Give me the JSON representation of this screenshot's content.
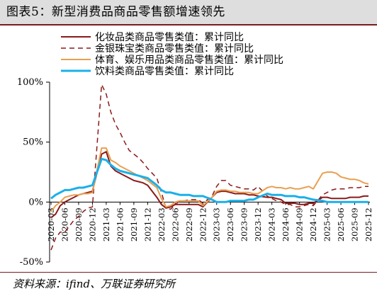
{
  "header": {
    "title": "图表5：新型消费品商品零售额增速领先"
  },
  "footer": {
    "source": "资料来源：ifind、万联证券研究所"
  },
  "chart_data": {
    "type": "line",
    "title": "",
    "xlabel": "",
    "ylabel": "",
    "ylim": [
      -50,
      100
    ],
    "yticks": [
      -50,
      0,
      50,
      100
    ],
    "ytick_labels": [
      "-50%",
      "0%",
      "50%",
      "100%"
    ],
    "grid": false,
    "legend_position": "top",
    "xtick_labels": [
      "2020-03",
      "2020-06",
      "2020-09",
      "2020-12",
      "2021-03",
      "2021-06",
      "2021-09",
      "2021-12",
      "2022-03",
      "2022-06",
      "2022-09",
      "2022-12",
      "2023-03",
      "2023-06",
      "2023-09",
      "2023-12",
      "2024-03",
      "2024-06",
      "2024-09",
      "2024-12",
      "2025-03",
      "2025-06",
      "2025-09",
      "2025-12"
    ],
    "x": [
      "2020-03",
      "2020-04",
      "2020-05",
      "2020-06",
      "2020-07",
      "2020-08",
      "2020-09",
      "2020-10",
      "2020-11",
      "2020-12",
      "2021-02",
      "2021-03",
      "2021-04",
      "2021-05",
      "2021-06",
      "2021-07",
      "2021-08",
      "2021-09",
      "2021-10",
      "2021-11",
      "2021-12",
      "2022-02",
      "2022-03",
      "2022-04",
      "2022-05",
      "2022-06",
      "2022-07",
      "2022-08",
      "2022-09",
      "2022-10",
      "2022-11",
      "2022-12",
      "2023-02",
      "2023-03",
      "2023-04",
      "2023-05",
      "2023-06",
      "2023-07",
      "2023-08",
      "2023-09",
      "2023-10",
      "2023-11",
      "2023-12",
      "2024-02",
      "2024-03",
      "2024-04",
      "2024-05",
      "2024-06",
      "2024-07",
      "2024-08",
      "2024-09",
      "2024-10",
      "2024-11",
      "2024-12",
      "2025-02",
      "2025-03",
      "2025-04",
      "2025-05",
      "2025-06",
      "2025-07",
      "2025-08",
      "2025-09",
      "2025-10",
      "2025-11",
      "2025-12"
    ],
    "series": [
      {
        "name": "化妆品类商品零售类值：累计同比",
        "color": "#8b1a1a",
        "dash": "solid",
        "width": 2,
        "values": [
          -13,
          -10,
          -3,
          0,
          2,
          4,
          6,
          7,
          8,
          9,
          40,
          42,
          30,
          26,
          24,
          22,
          20,
          18,
          17,
          16,
          14,
          4,
          -2,
          -5,
          -4,
          -2,
          -2,
          -2,
          -2,
          -2,
          -2,
          -4,
          4,
          8,
          9,
          9,
          8,
          7,
          7,
          7,
          6,
          6,
          5,
          4,
          4,
          3,
          2,
          -1,
          -1,
          -1,
          -2,
          -2,
          -1,
          -1,
          4,
          4,
          3,
          3,
          3,
          3,
          4,
          4,
          4,
          5,
          5
        ]
      },
      {
        "name": "金银珠宝类商品零售类值：累计同比",
        "color": "#8b1a1a",
        "dash": "dashed",
        "width": 1.5,
        "values": [
          -40,
          -30,
          -25,
          -25,
          -20,
          -15,
          -12,
          -8,
          -5,
          -4,
          98,
          90,
          75,
          65,
          58,
          50,
          43,
          40,
          37,
          33,
          28,
          20,
          8,
          -5,
          -6,
          -2,
          1,
          1,
          2,
          2,
          2,
          -1,
          5,
          13,
          18,
          18,
          14,
          13,
          12,
          11,
          11,
          10,
          13,
          5,
          3,
          1,
          0,
          -2,
          -2,
          -4,
          -4,
          -3,
          -2,
          -3,
          6,
          8,
          10,
          11,
          11,
          11,
          12,
          12,
          12,
          13,
          13
        ]
      },
      {
        "name": "体育、娱乐用品类商品零售类值：累计同比",
        "color": "#e8a050",
        "dash": "solid",
        "width": 2,
        "values": [
          -8,
          -3,
          0,
          4,
          5,
          6,
          6,
          7,
          7,
          8,
          45,
          45,
          35,
          33,
          30,
          28,
          26,
          24,
          22,
          20,
          18,
          12,
          3,
          -4,
          -3,
          0,
          1,
          1,
          1,
          1,
          1,
          -3,
          4,
          9,
          10,
          10,
          9,
          9,
          8,
          8,
          8,
          7,
          7,
          12,
          13,
          12,
          12,
          11,
          12,
          11,
          11,
          12,
          13,
          11,
          24,
          25,
          25,
          24,
          21,
          20,
          19,
          19,
          18,
          16,
          15
        ]
      },
      {
        "name": "饮料类商品零售类值：累计同比",
        "color": "#1ab0e8",
        "dash": "solid",
        "width": 3,
        "values": [
          3,
          6,
          8,
          10,
          10,
          11,
          12,
          12,
          13,
          14,
          36,
          35,
          31,
          28,
          26,
          25,
          24,
          23,
          22,
          21,
          20,
          14,
          10,
          8,
          8,
          7,
          6,
          6,
          6,
          5,
          5,
          5,
          2,
          0,
          0,
          0,
          1,
          1,
          1,
          1,
          2,
          2,
          4,
          7,
          6,
          6,
          6,
          5,
          5,
          5,
          4,
          4,
          3,
          2,
          1,
          0,
          0,
          0,
          0,
          0,
          0,
          0,
          0,
          0,
          0
        ]
      }
    ]
  }
}
